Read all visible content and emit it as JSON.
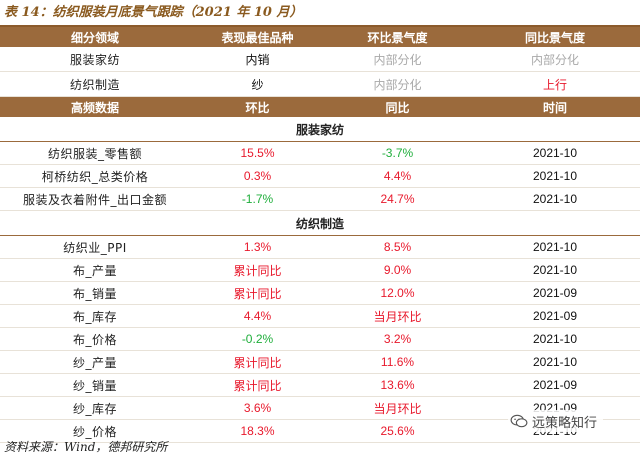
{
  "title": "表 14：纺织服装月底景气跟踪（2021 年 10 月）",
  "header1": [
    "细分领域",
    "表现最佳品种",
    "环比景气度",
    "同比景气度"
  ],
  "rows1": [
    {
      "domain": "服装家纺",
      "best": "内销",
      "mom": "内部分化",
      "yoy": "内部分化",
      "mom_color": "gray",
      "yoy_color": "gray"
    },
    {
      "domain": "纺织制造",
      "best": "纱",
      "mom": "内部分化",
      "yoy": "上行",
      "mom_color": "gray",
      "yoy_color": "red"
    }
  ],
  "header2": [
    "高频数据",
    "环比",
    "同比",
    "时间"
  ],
  "sections": [
    {
      "name": "服装家纺",
      "rows": [
        {
          "label": "纺织服装_零售额",
          "mom": "15.5%",
          "yoy": "-3.7%",
          "date": "2021-10",
          "mom_color": "red",
          "yoy_color": "green"
        },
        {
          "label": "柯桥纺织_总类价格",
          "mom": "0.3%",
          "yoy": "4.4%",
          "date": "2021-10",
          "mom_color": "red",
          "yoy_color": "red"
        },
        {
          "label": "服装及衣着附件_出口金额",
          "mom": "-1.7%",
          "yoy": "24.7%",
          "date": "2021-10",
          "mom_color": "green",
          "yoy_color": "red"
        }
      ]
    },
    {
      "name": "纺织制造",
      "rows": [
        {
          "label": "纺织业_PPI",
          "mom": "1.3%",
          "yoy": "8.5%",
          "date": "2021-10",
          "mom_color": "red",
          "yoy_color": "red"
        },
        {
          "label": "布_产量",
          "mom": "累计同比",
          "yoy": "9.0%",
          "date": "2021-10",
          "mom_color": "red",
          "yoy_color": "red"
        },
        {
          "label": "布_销量",
          "mom": "累计同比",
          "yoy": "12.0%",
          "date": "2021-09",
          "mom_color": "red",
          "yoy_color": "red"
        },
        {
          "label": "布_库存",
          "mom": "4.4%",
          "yoy": "当月环比",
          "date": "2021-09",
          "mom_color": "red",
          "yoy_color": "red"
        },
        {
          "label": "布_价格",
          "mom": "-0.2%",
          "yoy": "3.2%",
          "date": "2021-10",
          "mom_color": "green",
          "yoy_color": "red"
        },
        {
          "label": "纱_产量",
          "mom": "累计同比",
          "yoy": "11.6%",
          "date": "2021-10",
          "mom_color": "red",
          "yoy_color": "red"
        },
        {
          "label": "纱_销量",
          "mom": "累计同比",
          "yoy": "13.6%",
          "date": "2021-09",
          "mom_color": "red",
          "yoy_color": "red"
        },
        {
          "label": "纱_库存",
          "mom": "3.6%",
          "yoy": "当月环比",
          "date": "2021-09",
          "mom_color": "red",
          "yoy_color": "red"
        },
        {
          "label": "纱_价格",
          "mom": "18.3%",
          "yoy": "25.6%",
          "date": "2021-10",
          "mom_color": "red",
          "yoy_color": "red"
        }
      ]
    }
  ],
  "source": "资料来源：Wind，德邦研究所",
  "watermark": {
    "text": "远策略知行",
    "icon": "wechat-icon"
  },
  "colors": {
    "header_bg": "#9b6a3c",
    "title": "#8a5a1f",
    "positive": "#e8192c",
    "negative": "#1fae3b",
    "muted": "#a9a9a9"
  }
}
